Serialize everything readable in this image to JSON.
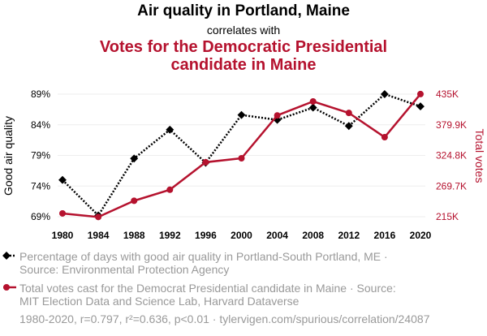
{
  "header": {
    "title": "Air quality in Portland, Maine",
    "connector": "correlates with",
    "subtitle_line1": "Votes for the Democratic Presidential",
    "subtitle_line2": "candidate in Maine"
  },
  "chart_data": {
    "type": "line",
    "x": [
      1980,
      1984,
      1988,
      1992,
      1996,
      2000,
      2004,
      2008,
      2012,
      2016,
      2020
    ],
    "x_tick_labels": [
      "1980",
      "1984",
      "1988",
      "1992",
      "1996",
      "2000",
      "2004",
      "2008",
      "2012",
      "2016",
      "2020"
    ],
    "left_axis": {
      "label": "Good air quality",
      "range": [
        69,
        89
      ],
      "ticks": [
        69,
        74,
        79,
        84,
        89
      ],
      "tick_labels": [
        "69%",
        "74%",
        "79%",
        "84%",
        "89%"
      ]
    },
    "right_axis": {
      "label": "Total votes",
      "range": [
        215,
        435
      ],
      "ticks": [
        215,
        269.7,
        324.8,
        379.9,
        435
      ],
      "tick_labels": [
        "215K",
        "269.7K",
        "324.8K",
        "379.9K",
        "435K"
      ]
    },
    "series": [
      {
        "name": "Percentage of days with good air quality in Portland-South Portland, ME",
        "axis": "left",
        "color": "#000000",
        "style": "dotted",
        "marker": "diamond",
        "values": [
          75.0,
          69.2,
          78.5,
          83.2,
          77.8,
          85.6,
          84.8,
          86.8,
          83.8,
          89.0,
          87.0
        ]
      },
      {
        "name": "Total votes cast for the Democrat Presidential candidate in Maine",
        "axis": "right",
        "color": "#b5122e",
        "style": "solid",
        "marker": "circle",
        "values": [
          220.9,
          214.5,
          243.6,
          263.4,
          312.8,
          319.9,
          396.8,
          421.9,
          401.3,
          357.7,
          435.1
        ]
      }
    ],
    "grid": "horizontal"
  },
  "legend": {
    "item1_line1": "Percentage of days with good air quality in Portland-South Portland, ME ·",
    "item1_line2": "Source: Environmental Protection Agency",
    "item2_line1": "Total votes cast for the Democrat Presidential candidate in Maine · Source:",
    "item2_line2": "MIT Election Data and Science Lab, Harvard Dataverse"
  },
  "footnote": "1980-2020, r=0.797, r²=0.636, p<0.01 · tylervigen.com/spurious/correlation/24087"
}
